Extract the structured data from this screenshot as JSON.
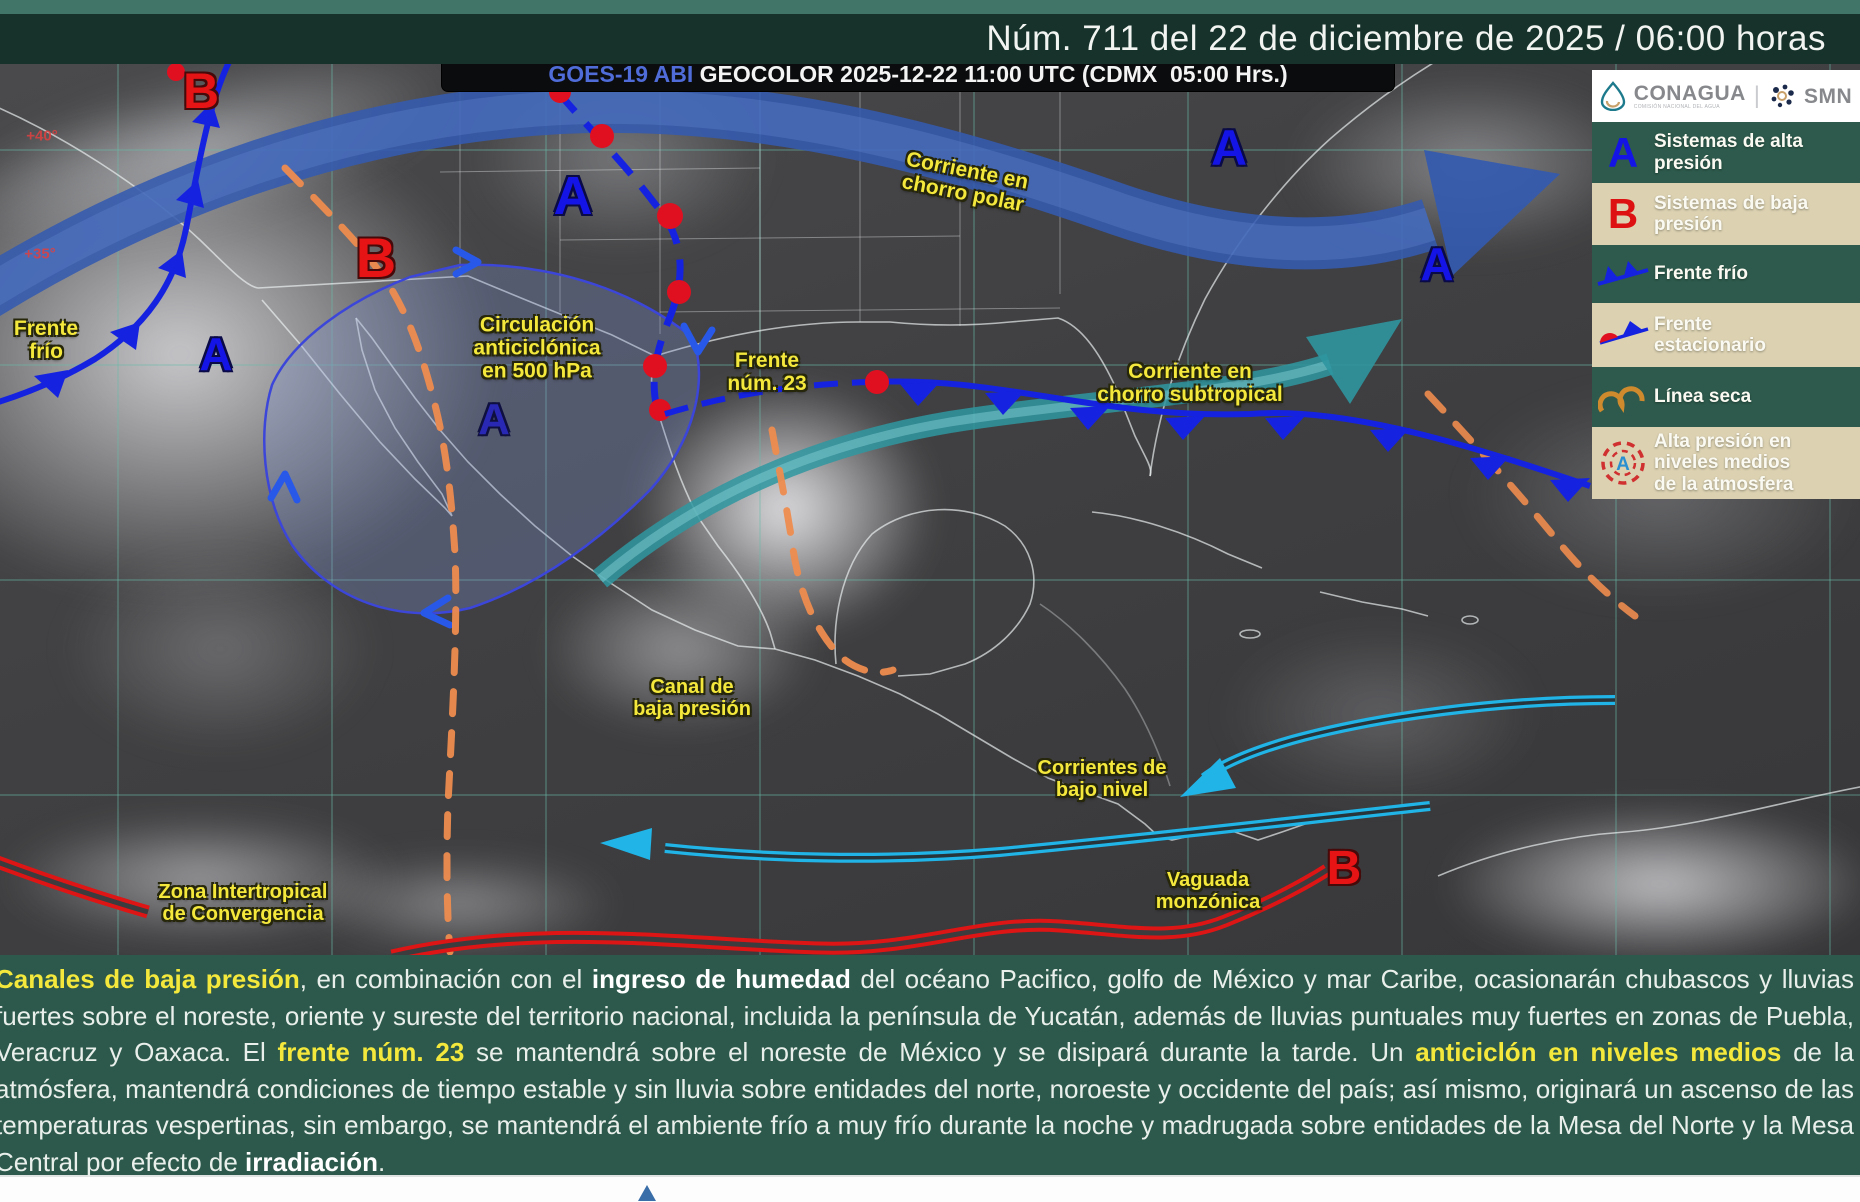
{
  "header": {
    "title": "Núm. 711 del 22 de diciembre de 2025 / 06:00 horas"
  },
  "map": {
    "title_prefix": "GOES-19 ABI",
    "title_rest": " GEOCOLOR 2025-12-22 11:00 UTC (CDMX  05:00 Hrs.)",
    "labels": [
      {
        "id": "polar-jet",
        "lines": [
          "Corriente en",
          "chorro polar"
        ]
      },
      {
        "id": "cold-front",
        "lines": [
          "Frente",
          "frío"
        ]
      },
      {
        "id": "anticyclone",
        "lines": [
          "Circulación",
          "anticiclónica",
          "en 500 hPa"
        ]
      },
      {
        "id": "front-23",
        "lines": [
          "Frente",
          "núm. 23"
        ]
      },
      {
        "id": "subtropical-jet",
        "lines": [
          "Corriente en",
          "chorro subtropical"
        ]
      },
      {
        "id": "low-channel",
        "lines": [
          "Canal de",
          "baja presión"
        ]
      },
      {
        "id": "low-level-flow",
        "lines": [
          "Corrientes de",
          "bajo nivel"
        ]
      },
      {
        "id": "itcz",
        "lines": [
          "Zona Intertropical",
          "de Convergencia"
        ]
      },
      {
        "id": "monsoon-trough",
        "lines": [
          "Vaguada",
          "monzónica"
        ]
      }
    ],
    "high_letter": "A",
    "low_letter": "B",
    "lat_labels": [
      "+40°",
      "+35°"
    ]
  },
  "legend": {
    "conagua": "CONAGUA",
    "conagua_sub": "COMISIÓN NACIONAL DEL AGUA",
    "smn": "SMN",
    "items": [
      {
        "label": "Sistemas de alta presión"
      },
      {
        "label": "Sistemas de baja presión"
      },
      {
        "label": "Frente frío"
      },
      {
        "label": "Frente estacionario"
      },
      {
        "label": "Línea seca"
      },
      {
        "label": "Alta presión en niveles medios de la atmosfera"
      }
    ]
  },
  "bulletin": {
    "segments": [
      {
        "t": "Canales de baja presión",
        "c": "yb"
      },
      {
        "t": ", en combinación con el ",
        "c": ""
      },
      {
        "t": "ingreso de humedad",
        "c": "wb"
      },
      {
        "t": " del océano Pacifico, golfo de México y mar Caribe, ocasionarán chubascos y lluvias fuertes sobre el noreste, oriente y sureste del territorio nacional, incluida la península de Yucatán, además de lluvias puntuales muy fuertes en zonas de Puebla, Veracruz y Oaxaca. El ",
        "c": ""
      },
      {
        "t": "frente núm. 23",
        "c": "yb"
      },
      {
        "t": " se mantendrá sobre el noreste de México y se disipará durante la tarde. Un ",
        "c": ""
      },
      {
        "t": "anticiclón en niveles medios",
        "c": "yb"
      },
      {
        "t": " de la atmósfera, mantendrá condiciones de tiempo estable y sin lluvia sobre entidades del norte, noroeste y occidente del país; así mismo, originará un ascenso de las temperaturas vespertinas, sin embargo, se mantendrá el ambiente frío a muy frío durante la noche y madrugada sobre entidades de la Mesa del Norte y la Mesa Central por efecto de ",
        "c": ""
      },
      {
        "t": "irradiación",
        "c": "wb"
      },
      {
        "t": ".",
        "c": ""
      }
    ]
  },
  "colors": {
    "header_bg": "#16322b",
    "legend_green": "#2d5a4c",
    "legend_beige": "#dcd2b2",
    "label_yellow": "#f4e83c",
    "high_blue": "#1414e6",
    "low_red": "#e61414",
    "polar_jet": "#3a5cb0",
    "subtropical_jet": "#2f98a0",
    "low_level_cyan": "#21b4e6",
    "trough_orange": "#ee8c4f",
    "itcz_red": "#dd1515"
  }
}
